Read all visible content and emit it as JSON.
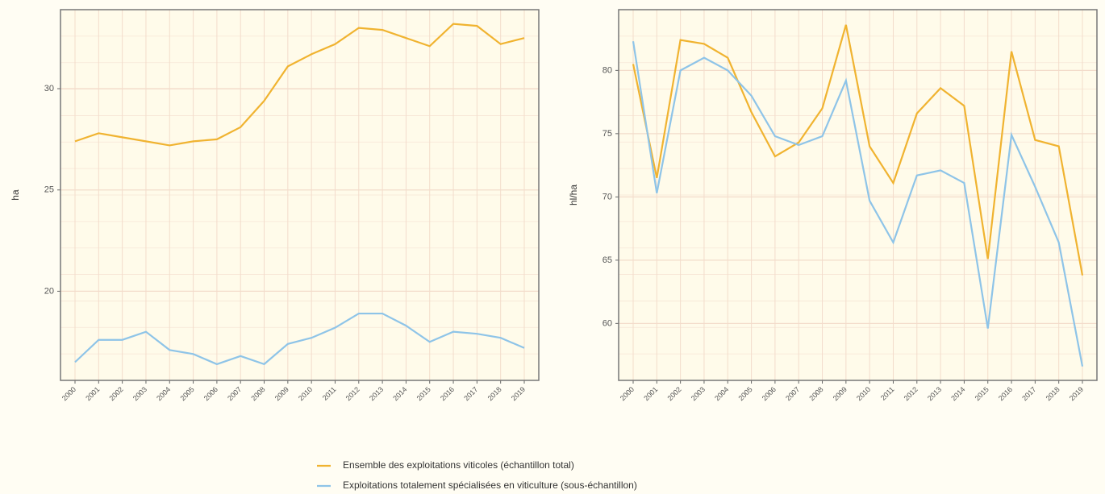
{
  "chart_data": [
    {
      "type": "line",
      "y_label": "ha",
      "x": [
        "2000",
        "2001",
        "2002",
        "2003",
        "2004",
        "2005",
        "2006",
        "2007",
        "2008",
        "2009",
        "2010",
        "2011",
        "2012",
        "2013",
        "2014",
        "2015",
        "2016",
        "2017",
        "2018",
        "2019"
      ],
      "series": [
        {
          "name": "Ensemble des exploitations viticoles (échantillon total)",
          "color": "#f0b330",
          "values": [
            27.4,
            27.8,
            27.6,
            27.4,
            27.2,
            27.4,
            27.5,
            28.1,
            29.4,
            31.1,
            31.7,
            32.2,
            33.0,
            32.9,
            32.5,
            32.1,
            33.2,
            33.1,
            32.2,
            32.5
          ]
        },
        {
          "name": "Exploitations totalement spécialisées en viticulture (sous-échantillon)",
          "color": "#8ec4e8",
          "values": [
            16.5,
            17.6,
            17.6,
            18.0,
            17.1,
            16.9,
            16.4,
            16.8,
            16.4,
            17.4,
            17.7,
            18.2,
            18.9,
            18.9,
            18.3,
            17.5,
            18.0,
            17.9,
            17.7,
            17.2
          ]
        }
      ],
      "ylim": [
        15.6,
        33.9
      ],
      "yticks": [
        20,
        25,
        30
      ],
      "grid": true
    },
    {
      "type": "line",
      "y_label": "hl/ha",
      "x": [
        "2000",
        "2001",
        "2002",
        "2003",
        "2004",
        "2005",
        "2006",
        "2007",
        "2008",
        "2009",
        "2010",
        "2011",
        "2012",
        "2013",
        "2014",
        "2015",
        "2016",
        "2017",
        "2018",
        "2019"
      ],
      "series": [
        {
          "color": "#f0b330",
          "values": [
            80.5,
            71.5,
            82.4,
            82.1,
            81.0,
            76.7,
            73.2,
            74.3,
            77.0,
            83.6,
            74.0,
            71.1,
            76.6,
            78.6,
            77.2,
            65.1,
            81.5,
            74.5,
            74.0,
            63.8
          ]
        },
        {
          "color": "#8ec4e8",
          "values": [
            82.3,
            70.3,
            80.0,
            81.0,
            80.0,
            78.0,
            74.8,
            74.1,
            74.8,
            79.2,
            69.7,
            66.4,
            71.7,
            72.1,
            71.1,
            59.6,
            74.9,
            70.8,
            66.4,
            56.6
          ]
        }
      ],
      "ylim": [
        55.5,
        84.8
      ],
      "yticks": [
        60,
        65,
        70,
        75,
        80
      ],
      "grid": true
    }
  ]
}
